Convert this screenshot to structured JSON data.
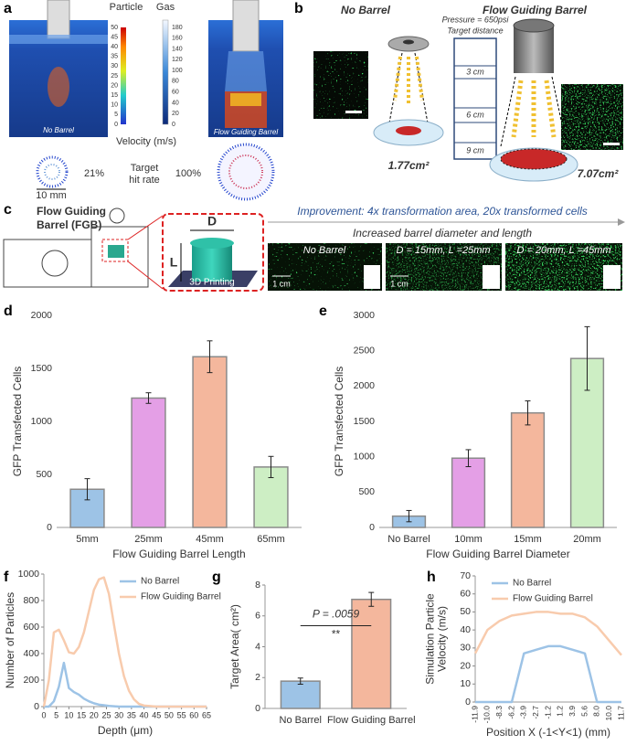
{
  "panels": {
    "a": {
      "label": "a",
      "particle_title": "Particle",
      "gas_title": "Gas",
      "particle_ticks": [
        0,
        5,
        10,
        15,
        20,
        25,
        30,
        35,
        40,
        45,
        50
      ],
      "gas_ticks": [
        0,
        20,
        40,
        60,
        80,
        100,
        120,
        140,
        160,
        180
      ],
      "velocity_label": "Velocity (m/s)",
      "left_caption": "No Barrel",
      "right_caption": "Flow Guiding Barrel",
      "hit_rate_left": "21%",
      "hit_rate_label": [
        "Target",
        "hit rate"
      ],
      "hit_rate_right": "100%",
      "scale": "10 mm"
    },
    "b": {
      "label": "b",
      "left_title": "No Barrel",
      "right_title": "Flow Guiding Barrel",
      "pressure": "Pressure = 650psi",
      "distance": "Target distance",
      "distances": [
        "3 cm",
        "6 cm",
        "9 cm"
      ],
      "left_area": "1.77cm²",
      "right_area": "7.07cm²"
    },
    "c": {
      "label": "c",
      "title": [
        "Flow Guiding",
        "Barrel (FGB)"
      ],
      "d_label": "D",
      "l_label": "L",
      "printing": "3D Printing",
      "improvement": "Improvement: 4x transformation area, 20x transformed cells",
      "subtitle": "Increased barrel diameter and length",
      "images": [
        "No Barrel",
        "D = 15mm, L =25mm",
        "D = 20mm, L =45mm"
      ],
      "scale": "1 cm"
    }
  },
  "chart_data": [
    {
      "type": "bar",
      "label": "d",
      "categories": [
        "5mm",
        "25mm",
        "45mm",
        "65mm"
      ],
      "values": [
        360,
        1220,
        1610,
        570
      ],
      "errors": [
        100,
        50,
        150,
        100
      ],
      "colors": [
        "#9dc3e6",
        "#e49fe6",
        "#f4b79d",
        "#cdeec4"
      ],
      "xlabel": "Flow Guiding Barrel Length",
      "ylabel": [
        "GFP Transfected Cells"
      ],
      "ylim": [
        0,
        2000
      ],
      "yticks": [
        0,
        500,
        1000,
        1500,
        2000
      ],
      "grid": false
    },
    {
      "type": "bar",
      "label": "e",
      "categories": [
        "No Barrel",
        "10mm",
        "15mm",
        "20mm"
      ],
      "values": [
        160,
        980,
        1620,
        2390
      ],
      "errors": [
        80,
        120,
        170,
        450
      ],
      "colors": [
        "#9dc3e6",
        "#e49fe6",
        "#f4b79d",
        "#cdeec4"
      ],
      "xlabel": "Flow Guiding Barrel Diameter",
      "ylabel": [
        "GFP Transfected Cells"
      ],
      "ylim": [
        0,
        3000
      ],
      "yticks": [
        0,
        500,
        1000,
        1500,
        2000,
        2500,
        3000
      ],
      "grid": false
    },
    {
      "type": "line",
      "label": "f",
      "x": [
        0,
        2,
        4,
        6,
        8,
        10,
        12,
        14,
        16,
        18,
        20,
        22,
        24,
        26,
        28,
        30,
        32,
        34,
        36,
        38,
        40,
        45,
        50,
        55,
        60,
        65
      ],
      "series": [
        {
          "name": "No Barrel",
          "color": "#9dc3e6",
          "values": [
            0,
            0,
            40,
            150,
            330,
            140,
            110,
            90,
            60,
            40,
            25,
            15,
            10,
            5,
            3,
            0,
            0,
            0,
            0,
            0,
            0,
            0,
            0,
            0,
            0,
            0
          ]
        },
        {
          "name": "Flow Guiding Barrel",
          "color": "#f8cbad",
          "values": [
            0,
            200,
            560,
            580,
            500,
            410,
            400,
            450,
            560,
            720,
            880,
            960,
            975,
            850,
            620,
            400,
            230,
            120,
            55,
            20,
            8,
            0,
            0,
            0,
            0,
            0
          ]
        }
      ],
      "xlabel": "Depth (μm)",
      "ylabel": [
        "Number of Particles"
      ],
      "xlim": [
        0,
        65
      ],
      "xticks": [
        0,
        5,
        10,
        15,
        20,
        25,
        30,
        35,
        40,
        45,
        50,
        55,
        60,
        65
      ],
      "ylim": [
        0,
        1000
      ],
      "yticks": [
        0,
        200,
        400,
        600,
        800,
        1000
      ],
      "legend": "upper right",
      "grid": false
    },
    {
      "type": "bar",
      "label": "g",
      "categories": [
        "No Barrel",
        "Flow Guiding Barrel"
      ],
      "values": [
        1.77,
        7.07
      ],
      "errors": [
        0.2,
        0.45
      ],
      "colors": [
        "#9dc3e6",
        "#f4b79d"
      ],
      "ylabel": [
        "Target Area( cm²)"
      ],
      "annotation": "P = .0059",
      "significance": "**",
      "ylim": [
        0,
        8
      ],
      "yticks": [
        0,
        2,
        4,
        6,
        8
      ],
      "grid": false
    },
    {
      "type": "line",
      "label": "h",
      "categories": [
        "-11.9",
        "-10.0",
        "-8.3",
        "-6.2",
        "-3.9",
        "-2.7",
        "-1.2",
        "1.2",
        "3.9",
        "5.6",
        "8.0",
        "10.0",
        "11.7"
      ],
      "series": [
        {
          "name": "No Barrel",
          "color": "#9dc3e6",
          "values": [
            0,
            0,
            0,
            0,
            27,
            29,
            31,
            31,
            29,
            27,
            0,
            0,
            0
          ]
        },
        {
          "name": "Flow Guiding Barrel",
          "color": "#f8cbad",
          "values": [
            27,
            40,
            45,
            48,
            49,
            50,
            50,
            49,
            49,
            47,
            42,
            34,
            26
          ]
        }
      ],
      "xlabel": "Position X (-1<Y<1)  (mm)",
      "ylabel": [
        "Simulation Particle",
        "Velocity (m/s)"
      ],
      "ylim": [
        0,
        70
      ],
      "yticks": [
        0,
        10,
        20,
        30,
        40,
        50,
        60,
        70
      ],
      "legend": "upper left",
      "grid": false
    }
  ]
}
